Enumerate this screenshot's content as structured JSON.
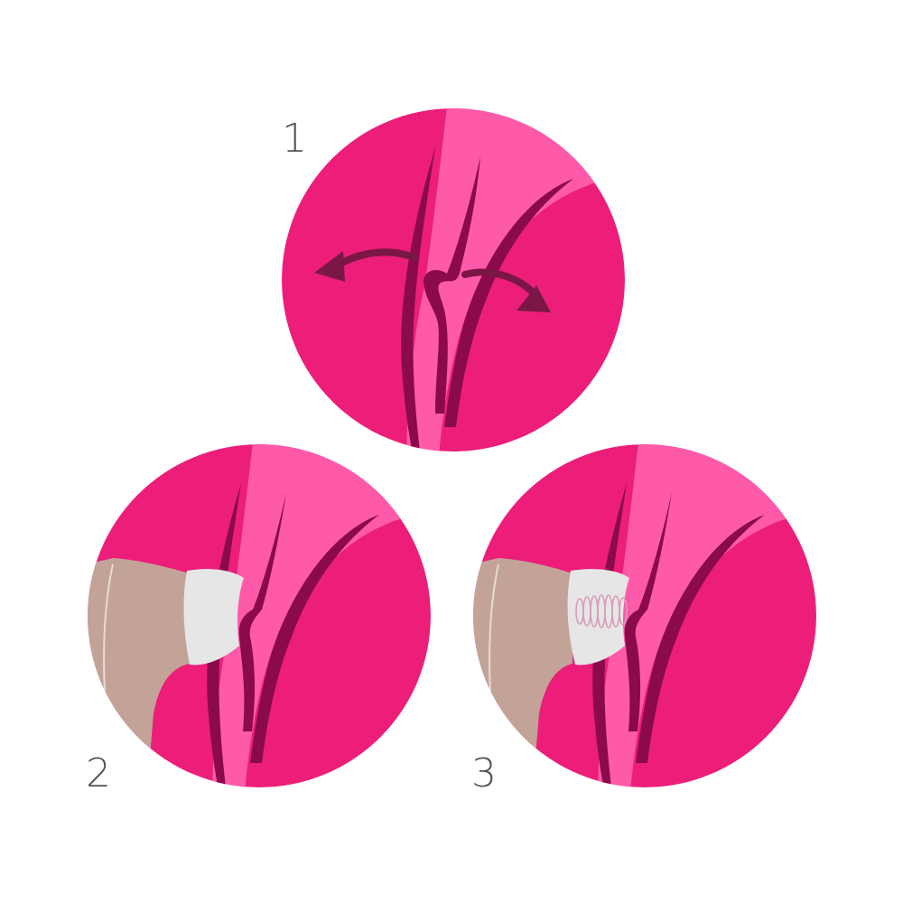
{
  "steps": [
    {
      "number": "1",
      "description": "open"
    },
    {
      "number": "2",
      "description": "place"
    },
    {
      "number": "3",
      "description": "pulse"
    }
  ],
  "colors": {
    "background": "#ffffff",
    "dark_pink": "#ec1e79",
    "light_pink": "#ff5aa9",
    "deep_plum": "#8a0a4c",
    "arrow_plum": "#7a1747",
    "device_body": "#c3a398",
    "device_head": "#e6e6e6",
    "step_number": "#555555"
  },
  "icons": [
    "double-arrow-icon",
    "device-icon",
    "pulse-wave-icon"
  ]
}
